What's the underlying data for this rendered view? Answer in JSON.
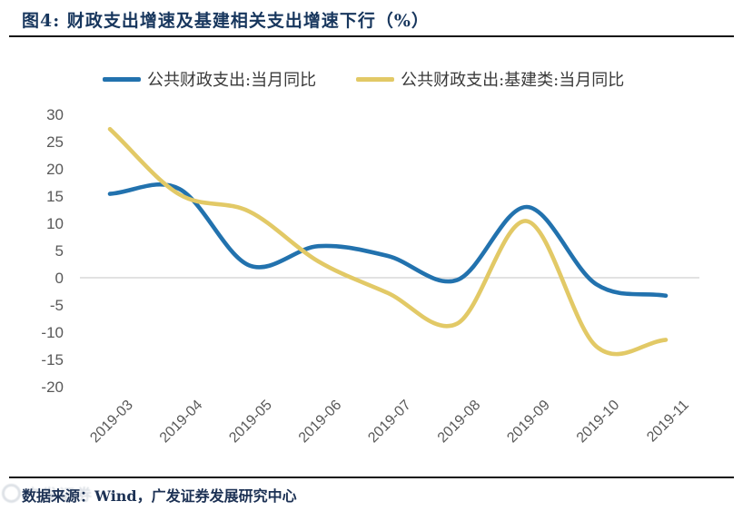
{
  "header": {
    "title": "图4:  财政支出增速及基建相关支出增速下行（%）"
  },
  "footer": {
    "text": "数据来源：Wind，广发证券发展研究中心",
    "watermark": "广发证券"
  },
  "chart_data": {
    "type": "line",
    "title": "财政支出增速及基建相关支出增速下行（%）",
    "xlabel": "",
    "ylabel": "",
    "categories": [
      "2019-03",
      "2019-04",
      "2019-05",
      "2019-06",
      "2019-07",
      "2019-08",
      "2019-09",
      "2019-10",
      "2019-11"
    ],
    "series": [
      {
        "name": "公共财政支出:当月同比",
        "color": "#2272ae",
        "values": [
          15.4,
          16.3,
          2.3,
          5.8,
          4.0,
          -0.4,
          13.0,
          -1.2,
          -3.3
        ]
      },
      {
        "name": "公共财政支出:基建类:当月同比",
        "color": "#e2c966",
        "values": [
          27.3,
          15.3,
          12.2,
          3.0,
          -2.8,
          -8.4,
          10.4,
          -12.6,
          -11.4
        ]
      }
    ],
    "ylim": [
      -20,
      30
    ],
    "yticks": [
      30,
      25,
      20,
      15,
      10,
      5,
      0,
      -5,
      -10,
      -15,
      -20
    ],
    "grid": "zero-line-only",
    "zero_line_color": "#d9d9d9",
    "axis_text_color": "#595959",
    "legend_position": "top",
    "line_style": "smooth"
  }
}
